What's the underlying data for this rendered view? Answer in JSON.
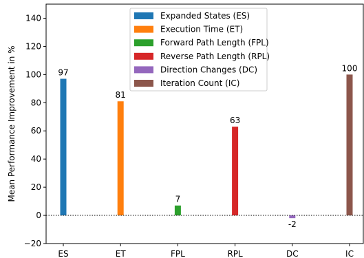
{
  "chart_data": {
    "type": "bar",
    "categories": [
      "ES",
      "ET",
      "FPL",
      "RPL",
      "DC",
      "IC"
    ],
    "values": [
      97,
      81,
      7,
      63,
      -2,
      100
    ],
    "data_labels": [
      "97",
      "81",
      "7",
      "63",
      "-2",
      "100"
    ],
    "colors": [
      "#1f77b4",
      "#ff7f0e",
      "#2ca02c",
      "#d62728",
      "#9467bd",
      "#8c564b"
    ],
    "title": "",
    "xlabel": "",
    "ylabel": "Mean Performance Improvement in %",
    "ylim": [
      -20,
      150
    ],
    "yticks": [
      -20,
      0,
      20,
      40,
      60,
      80,
      100,
      120,
      140
    ],
    "ytick_labels": [
      "−20",
      "0",
      "20",
      "40",
      "60",
      "80",
      "100",
      "120",
      "140"
    ],
    "zero_line": "dotted",
    "grid": false,
    "legend": {
      "placement": "top-center",
      "entries": [
        "Expanded States (ES)",
        "Execution Time (ET)",
        "Forward Path Length (FPL)",
        "Reverse Path Length (RPL)",
        "Direction Changes (DC)",
        "Iteration Count (IC)"
      ]
    }
  }
}
